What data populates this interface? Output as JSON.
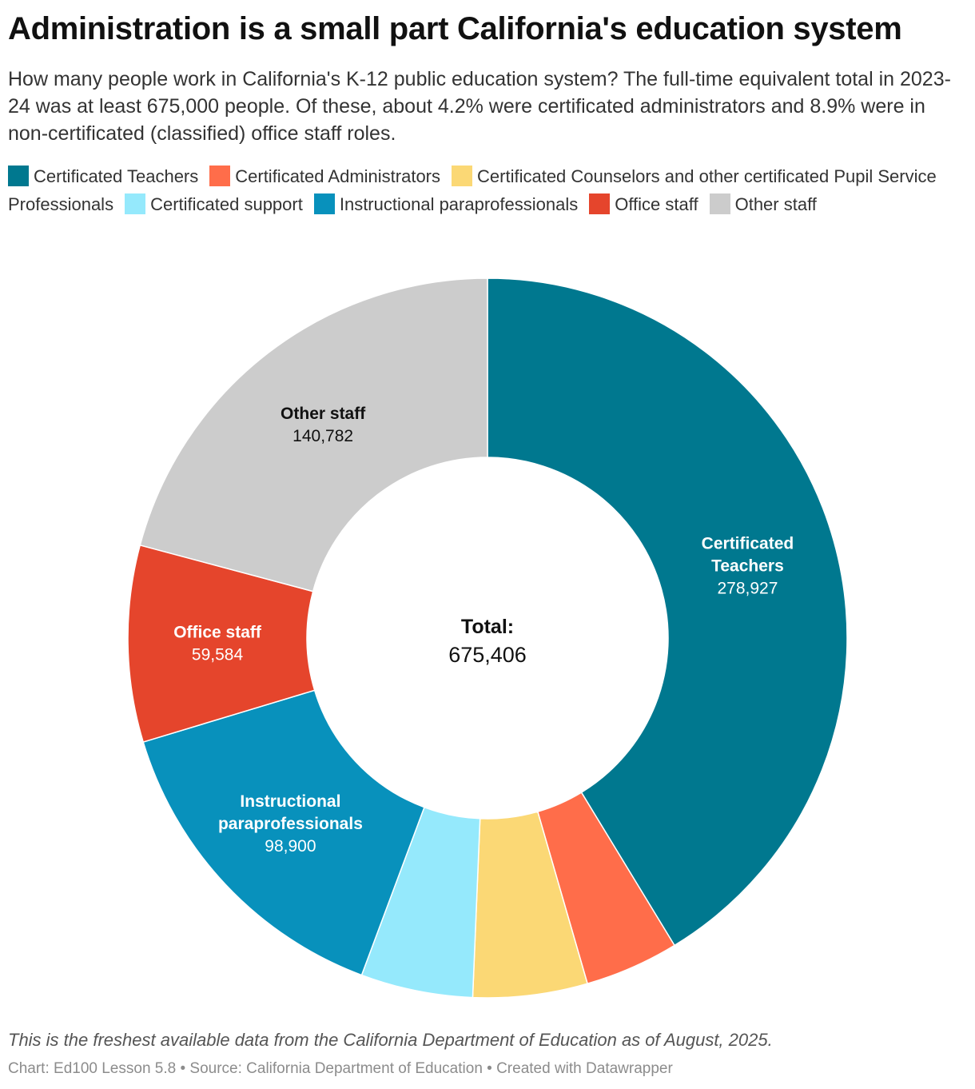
{
  "title": "Administration is a small part California's education system",
  "subtitle": "How many people work in California's K-12 public education system? The full-time equivalent total in 2023-24 was at least 675,000 people. Of these, about 4.2% were certificated administrators and 8.9% were in non-certificated (classified) office staff roles.",
  "chart_data": {
    "type": "pie",
    "variant": "donut",
    "center_label": {
      "title": "Total:",
      "value": "675,406"
    },
    "slices": [
      {
        "name": "Certificated Teachers",
        "value": 278927,
        "color": "#00788f",
        "label_lines": [
          "Certificated",
          "Teachers"
        ],
        "value_label": "278,927",
        "label_color": "#ffffff"
      },
      {
        "name": "Certificated Administrators",
        "value": 28500,
        "color": "#ff6d4a",
        "label_lines": [],
        "value_label": ""
      },
      {
        "name": "Certificated Counselors and other certificated Pupil Service Professionals",
        "value": 34713,
        "color": "#fbd875",
        "label_lines": [],
        "value_label": ""
      },
      {
        "name": "Certificated support",
        "value": 34000,
        "color": "#95e9fc",
        "label_lines": [],
        "value_label": ""
      },
      {
        "name": "Instructional paraprofessionals",
        "value": 98900,
        "color": "#0891bc",
        "label_lines": [
          "Instructional",
          "paraprofessionals"
        ],
        "value_label": "98,900",
        "label_color": "#ffffff"
      },
      {
        "name": "Office staff",
        "value": 59584,
        "color": "#e5452c",
        "label_lines": [
          "Office staff"
        ],
        "value_label": "59,584",
        "label_color": "#ffffff"
      },
      {
        "name": "Other staff",
        "value": 140782,
        "color": "#cccccc",
        "label_lines": [
          "Other staff"
        ],
        "value_label": "140,782",
        "label_color": "#111111"
      }
    ]
  },
  "note": "This is the freshest available data from the California Department of Education as of August, 2025.",
  "credit": "Chart: Ed100 Lesson 5.8 • Source: California Department of Education • Created with Datawrapper"
}
